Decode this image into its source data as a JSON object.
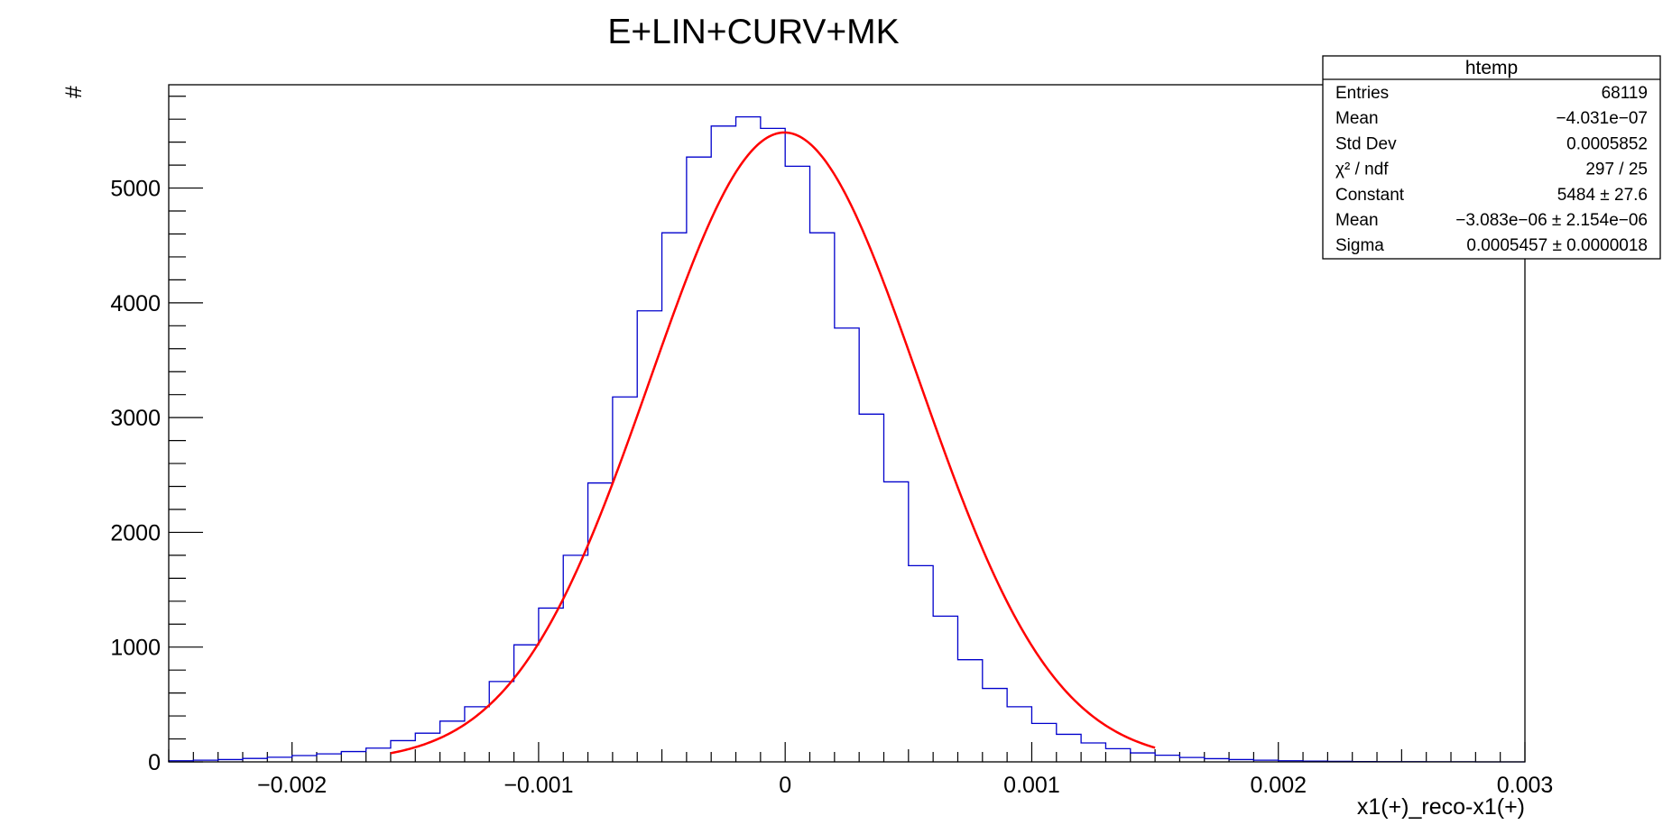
{
  "chart_data": {
    "type": "bar",
    "title": "E+LIN+CURV+MK",
    "xlabel": "x1(+)_reco-x1(+)",
    "ylabel": "#",
    "xlim": [
      -0.0025,
      0.003
    ],
    "ylim": [
      0,
      5900
    ],
    "x_ticks": [
      -0.002,
      -0.001,
      0,
      0.001,
      0.002,
      0.003
    ],
    "x_tick_labels": [
      "−0.002",
      "−0.001",
      "0",
      "0.001",
      "0.002",
      "0.003"
    ],
    "y_ticks": [
      0,
      1000,
      2000,
      3000,
      4000,
      5000
    ],
    "y_tick_labels": [
      "0",
      "1000",
      "2000",
      "3000",
      "4000",
      "5000"
    ],
    "histogram": {
      "name": "htemp",
      "color": "#0000cc",
      "bin_width": 0.0001,
      "bin_low_edges": [
        -0.0025,
        -0.0024,
        -0.0023,
        -0.0022,
        -0.0021,
        -0.002,
        -0.0019,
        -0.0018,
        -0.0017,
        -0.0016,
        -0.0015,
        -0.0014,
        -0.0013,
        -0.0012,
        -0.0011,
        -0.001,
        -0.0009,
        -0.0008,
        -0.0007,
        -0.0006,
        -0.0005,
        -0.0004,
        -0.0003,
        -0.0002,
        -0.0001,
        0.0,
        0.0001,
        0.0002,
        0.0003,
        0.0004,
        0.0005,
        0.0006,
        0.0007,
        0.0008,
        0.0009,
        0.001,
        0.0011,
        0.0012,
        0.0013,
        0.0014,
        0.0015,
        0.0016,
        0.0017,
        0.0018,
        0.0019,
        0.002,
        0.0021,
        0.0022,
        0.0023,
        0.0024,
        0.0025,
        0.0026,
        0.0027,
        0.0028,
        0.0029
      ],
      "counts": [
        10,
        15,
        20,
        30,
        40,
        55,
        70,
        90,
        120,
        185,
        250,
        355,
        480,
        700,
        1020,
        1340,
        1800,
        2430,
        3180,
        3930,
        4610,
        5270,
        5540,
        5620,
        5520,
        5190,
        4610,
        3780,
        3030,
        2440,
        1710,
        1270,
        890,
        640,
        480,
        335,
        240,
        165,
        115,
        78,
        58,
        38,
        28,
        20,
        15,
        10,
        7,
        5,
        3,
        2,
        2,
        1,
        1,
        0,
        0
      ]
    },
    "fit": {
      "type": "gaussian",
      "color": "#ff0000",
      "constant": 5484,
      "mean": -3.083e-06,
      "sigma": 0.0005457,
      "x_range": [
        -0.0016,
        0.0015
      ]
    }
  },
  "stats_box": {
    "title": "htemp",
    "rows": [
      {
        "label": "Entries",
        "value": "68119"
      },
      {
        "label": "Mean",
        "value": "−4.031e−07"
      },
      {
        "label": "Std Dev",
        "value": "0.0005852"
      },
      {
        "label": "χ² / ndf",
        "value": "297 / 25"
      },
      {
        "label": "Constant",
        "value": "5484 ± 27.6"
      },
      {
        "label": "Mean",
        "value": "−3.083e−06 ± 2.154e−06"
      },
      {
        "label": "Sigma",
        "value": "0.0005457 ± 0.0000018"
      }
    ]
  }
}
